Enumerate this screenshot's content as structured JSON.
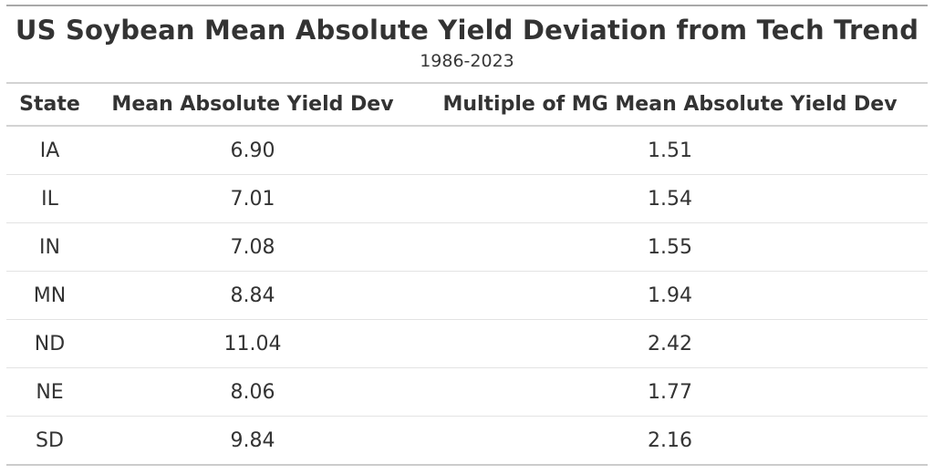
{
  "header": {
    "title": "US Soybean Mean Absolute Yield Deviation from Tech Trend",
    "subtitle": "1986-2023"
  },
  "table": {
    "columns": {
      "state": "State",
      "dev": "Mean Absolute Yield Dev",
      "multiple": "Multiple of MG Mean Absolute Yield Dev"
    },
    "rows": [
      {
        "state": "IA",
        "dev": "6.90",
        "multiple": "1.51"
      },
      {
        "state": "IL",
        "dev": "7.01",
        "multiple": "1.54"
      },
      {
        "state": "IN",
        "dev": "7.08",
        "multiple": "1.55"
      },
      {
        "state": "MN",
        "dev": "8.84",
        "multiple": "1.94"
      },
      {
        "state": "ND",
        "dev": "11.04",
        "multiple": "2.42"
      },
      {
        "state": "NE",
        "dev": "8.06",
        "multiple": "1.77"
      },
      {
        "state": "SD",
        "dev": "9.84",
        "multiple": "2.16"
      }
    ]
  },
  "colors": {
    "text": "#333333",
    "table_border_top": "#a8a8a8",
    "table_border_bottom": "#cccccc",
    "header_border": "#d3d3d3",
    "row_separator": "#e3e3e3",
    "background": "#ffffff"
  },
  "chart_data": {
    "type": "table",
    "title": "US Soybean Mean Absolute Yield Deviation from Tech Trend",
    "subtitle": "1986-2023",
    "columns": [
      "State",
      "Mean Absolute Yield Dev",
      "Multiple of MG Mean Absolute Yield Dev"
    ],
    "rows": [
      [
        "IA",
        6.9,
        1.51
      ],
      [
        "IL",
        7.01,
        1.54
      ],
      [
        "IN",
        7.08,
        1.55
      ],
      [
        "MN",
        8.84,
        1.94
      ],
      [
        "ND",
        11.04,
        2.42
      ],
      [
        "NE",
        8.06,
        1.77
      ],
      [
        "SD",
        9.84,
        2.16
      ]
    ]
  }
}
